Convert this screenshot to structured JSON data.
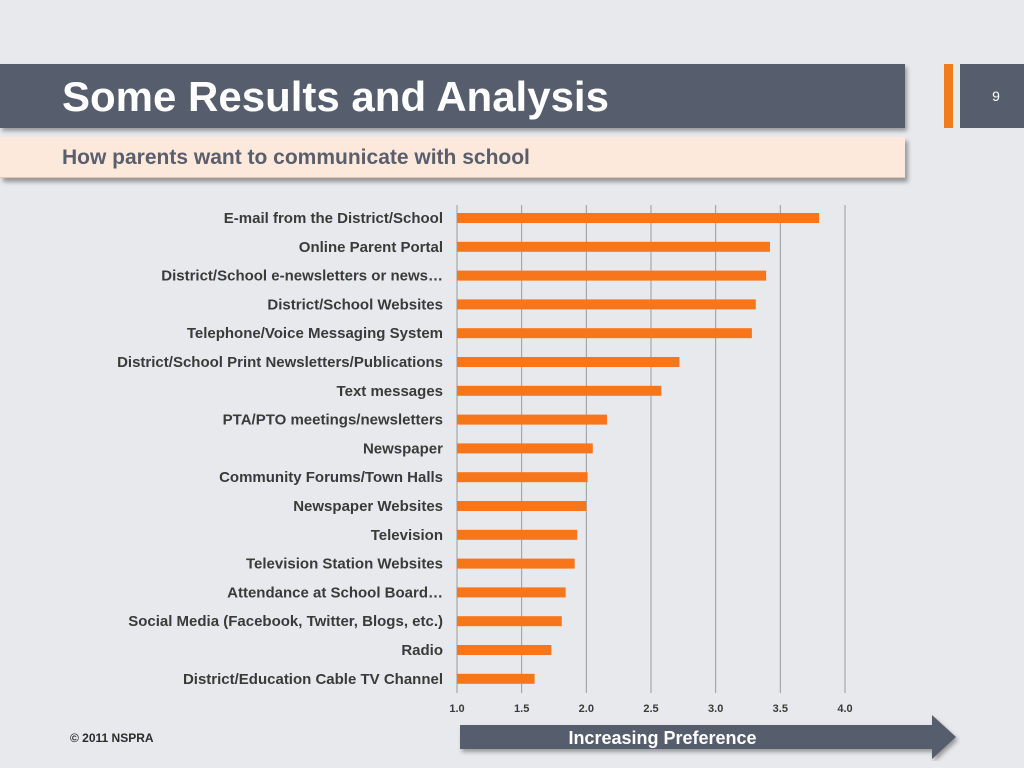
{
  "slide": {
    "title": "Some Results and Analysis",
    "page_number": "9",
    "subtitle": "How parents want to communicate with school",
    "footer": "© 2011 NSPRA",
    "arrow_label": "Increasing Preference"
  },
  "colors": {
    "title_band": "#565d6c",
    "accent": "#f07c1e",
    "subtitle_band": "#fde8dc",
    "bar": "#f7751b"
  },
  "chart_data": {
    "type": "bar",
    "orientation": "horizontal",
    "categories": [
      "E-mail from the District/School",
      "Online Parent Portal",
      "District/School e-newsletters or news…",
      "District/School Websites",
      "Telephone/Voice Messaging System",
      "District/School Print Newsletters/Publications",
      "Text messages",
      "PTA/PTO meetings/newsletters",
      "Newspaper",
      "Community Forums/Town Halls",
      "Newspaper Websites",
      "Television",
      "Television Station Websites",
      "Attendance at School Board…",
      "Social Media (Facebook, Twitter, Blogs, etc.)",
      "Radio",
      "District/Education Cable TV Channel"
    ],
    "values": [
      3.8,
      3.42,
      3.39,
      3.31,
      3.28,
      2.72,
      2.58,
      2.16,
      2.05,
      2.01,
      2.0,
      1.93,
      1.91,
      1.84,
      1.81,
      1.73,
      1.6
    ],
    "xlim": [
      1.0,
      4.0
    ],
    "xticks": [
      "1.0",
      "1.5",
      "2.0",
      "2.5",
      "3.0",
      "3.5",
      "4.0"
    ],
    "grid": "vertical",
    "legend": "none",
    "title": "",
    "xlabel": "",
    "ylabel": ""
  }
}
